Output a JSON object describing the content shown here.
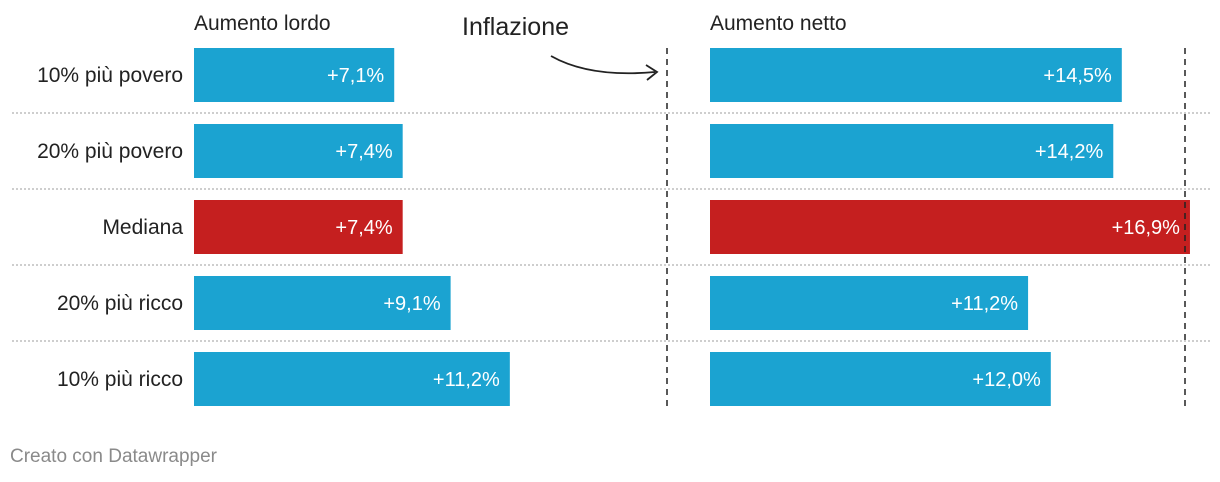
{
  "chart_data": {
    "type": "bar",
    "categories": [
      "10% più povero",
      "20% più povero",
      "Mediana",
      "20% più ricco",
      "10% più ricco"
    ],
    "series": [
      {
        "name": "Aumento lordo",
        "values": [
          7.1,
          7.4,
          7.4,
          9.1,
          11.2
        ],
        "labels": [
          "+7,1%",
          "+7,4%",
          "+7,4%",
          "+9,1%",
          "+11,2%"
        ]
      },
      {
        "name": "Aumento netto",
        "values": [
          14.5,
          14.2,
          16.9,
          11.2,
          12.0
        ],
        "labels": [
          "+14,5%",
          "+14,2%",
          "+16,9%",
          "+11,2%",
          "+12,0%"
        ]
      }
    ],
    "reference_lines": [
      {
        "label": "Inflazione",
        "applies_to": "both panels"
      }
    ],
    "highlight_category": "Mediana",
    "colors": {
      "default": "#1ba3d1",
      "highlight": "#c51f1f",
      "text_on_bar": "#ffffff",
      "label": "#222222",
      "separator": "#bdbdbd"
    },
    "orientation": "horizontal",
    "layout": "two side-by-side panels sharing categories"
  },
  "footer": {
    "credit": "Creato con Datawrapper"
  }
}
